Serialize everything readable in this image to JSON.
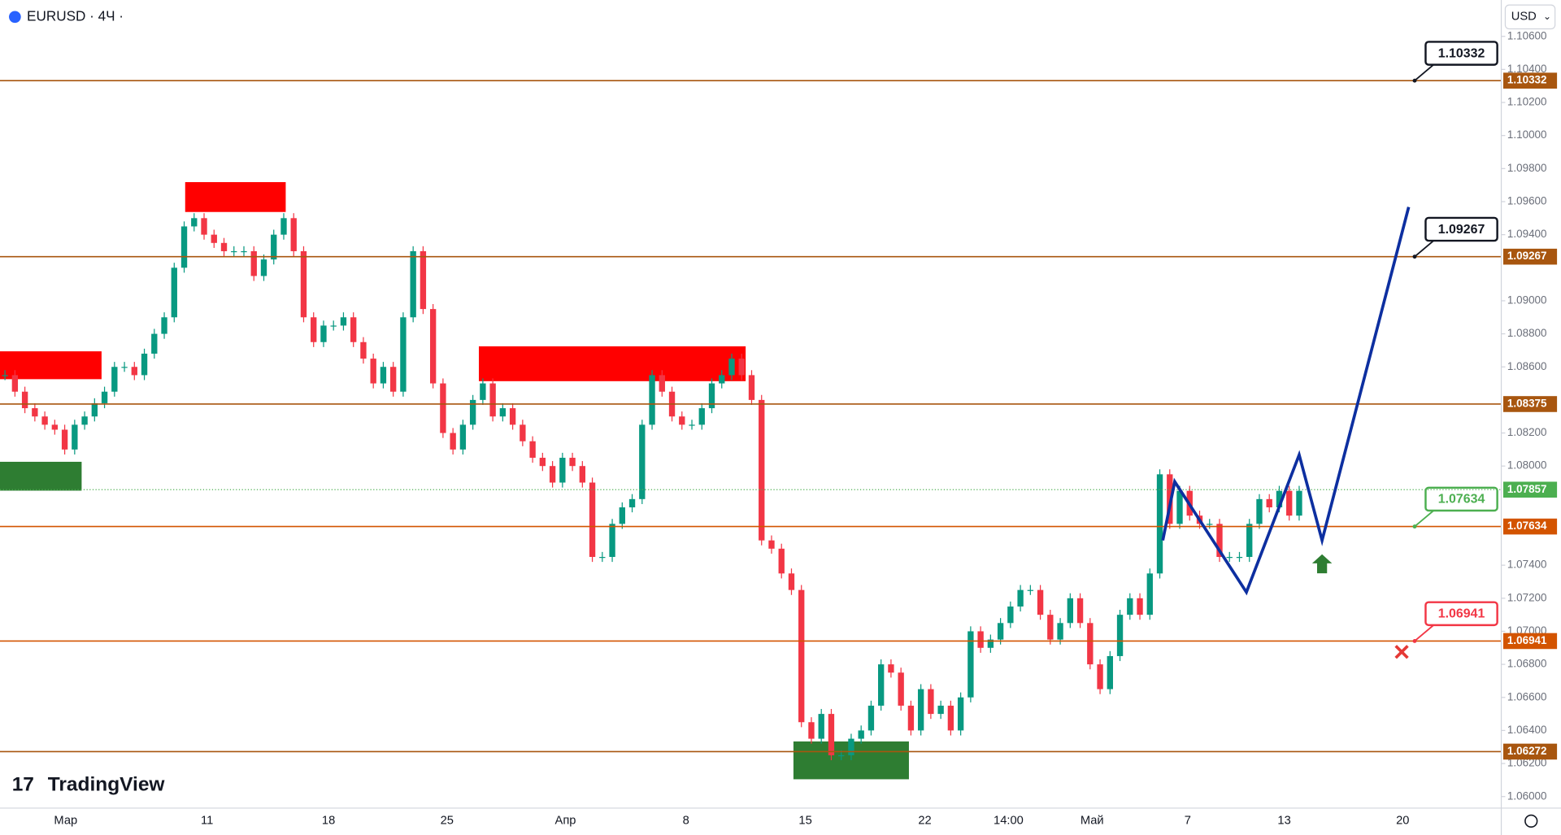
{
  "chart_data": {
    "type": "candlestick",
    "title": "EURUSD · 4Ч ·",
    "currency": "USD",
    "brand": "TradingView",
    "up_color": "#089981",
    "down_color": "#f23645",
    "x_labels": [
      "Мар",
      "11",
      "18",
      "25",
      "Апр",
      "8",
      "15",
      "22",
      "14:00",
      "Май",
      "7",
      "13",
      "20"
    ],
    "closes": [
      1.0855,
      1.0845,
      1.0835,
      1.083,
      1.0825,
      1.0822,
      1.081,
      1.0825,
      1.083,
      1.0838,
      1.0845,
      1.086,
      1.086,
      1.0855,
      1.0868,
      1.088,
      1.089,
      1.092,
      1.0945,
      1.095,
      1.094,
      1.0935,
      1.093,
      1.093,
      1.093,
      1.0915,
      1.0925,
      1.094,
      1.095,
      1.093,
      1.089,
      1.0875,
      1.0885,
      1.0885,
      1.089,
      1.0875,
      1.0865,
      1.085,
      1.086,
      1.0845,
      1.089,
      1.093,
      1.0895,
      1.085,
      1.082,
      1.081,
      1.0825,
      1.084,
      1.085,
      1.083,
      1.0835,
      1.0825,
      1.0815,
      1.0805,
      1.08,
      1.079,
      1.0805,
      1.08,
      1.079,
      1.0745,
      1.0745,
      1.0765,
      1.0775,
      1.078,
      1.0825,
      1.0855,
      1.0845,
      1.083,
      1.0825,
      1.0825,
      1.0835,
      1.085,
      1.0855,
      1.0865,
      1.0855,
      1.084,
      1.0755,
      1.075,
      1.0735,
      1.0725,
      1.0645,
      1.0635,
      1.065,
      1.0625,
      1.0625,
      1.0635,
      1.064,
      1.0655,
      1.068,
      1.0675,
      1.0655,
      1.064,
      1.0665,
      1.065,
      1.0655,
      1.064,
      1.066,
      1.07,
      1.069,
      1.0695,
      1.0705,
      1.0715,
      1.0725,
      1.0725,
      1.071,
      1.0695,
      1.0705,
      1.072,
      1.0705,
      1.068,
      1.0665,
      1.0685,
      1.071,
      1.072,
      1.071,
      1.0735,
      1.0795,
      1.0765,
      1.0785,
      1.077,
      1.0765,
      1.0765,
      1.0745,
      1.0745,
      1.0745,
      1.0765,
      1.078,
      1.0775,
      1.0785,
      1.077,
      1.0785
    ],
    "ylim": [
      1.0593,
      1.1082
    ],
    "yticks": [
      {
        "value": 1.06,
        "label": "1.06000"
      },
      {
        "value": 1.062,
        "label": "1.06200"
      },
      {
        "value": 1.064,
        "label": "1.06400"
      },
      {
        "value": 1.066,
        "label": "1.06600"
      },
      {
        "value": 1.068,
        "label": "1.06800"
      },
      {
        "value": 1.07,
        "label": "1.07000"
      },
      {
        "value": 1.072,
        "label": "1.07200"
      },
      {
        "value": 1.074,
        "label": "1.07400"
      },
      {
        "value": 1.08,
        "label": "1.08000"
      },
      {
        "value": 1.082,
        "label": "1.08200"
      },
      {
        "value": 1.086,
        "label": "1.08600"
      },
      {
        "value": 1.088,
        "label": "1.08800"
      },
      {
        "value": 1.09,
        "label": "1.09000"
      },
      {
        "value": 1.094,
        "label": "1.09400"
      },
      {
        "value": 1.096,
        "label": "1.09600"
      },
      {
        "value": 1.098,
        "label": "1.09800"
      },
      {
        "value": 1.1,
        "label": "1.10000"
      },
      {
        "value": 1.102,
        "label": "1.10200"
      },
      {
        "value": 1.104,
        "label": "1.10400"
      },
      {
        "value": 1.106,
        "label": "1.10600"
      }
    ],
    "levels": [
      {
        "value": 1.10332,
        "color": "#a8560f",
        "callout_color": "#131722"
      },
      {
        "value": 1.09267,
        "color": "#a8560f",
        "callout_color": "#131722"
      },
      {
        "value": 1.08375,
        "color": "#a8560f"
      },
      {
        "value": 1.07634,
        "color": "#d35400",
        "callout_color": "#4caf50"
      },
      {
        "value": 1.06941,
        "color": "#d35400",
        "callout_color": "#f23645"
      },
      {
        "value": 1.06272,
        "color": "#a8560f"
      }
    ],
    "last_price": {
      "value": 1.07857,
      "color": "#4caf50"
    }
  }
}
